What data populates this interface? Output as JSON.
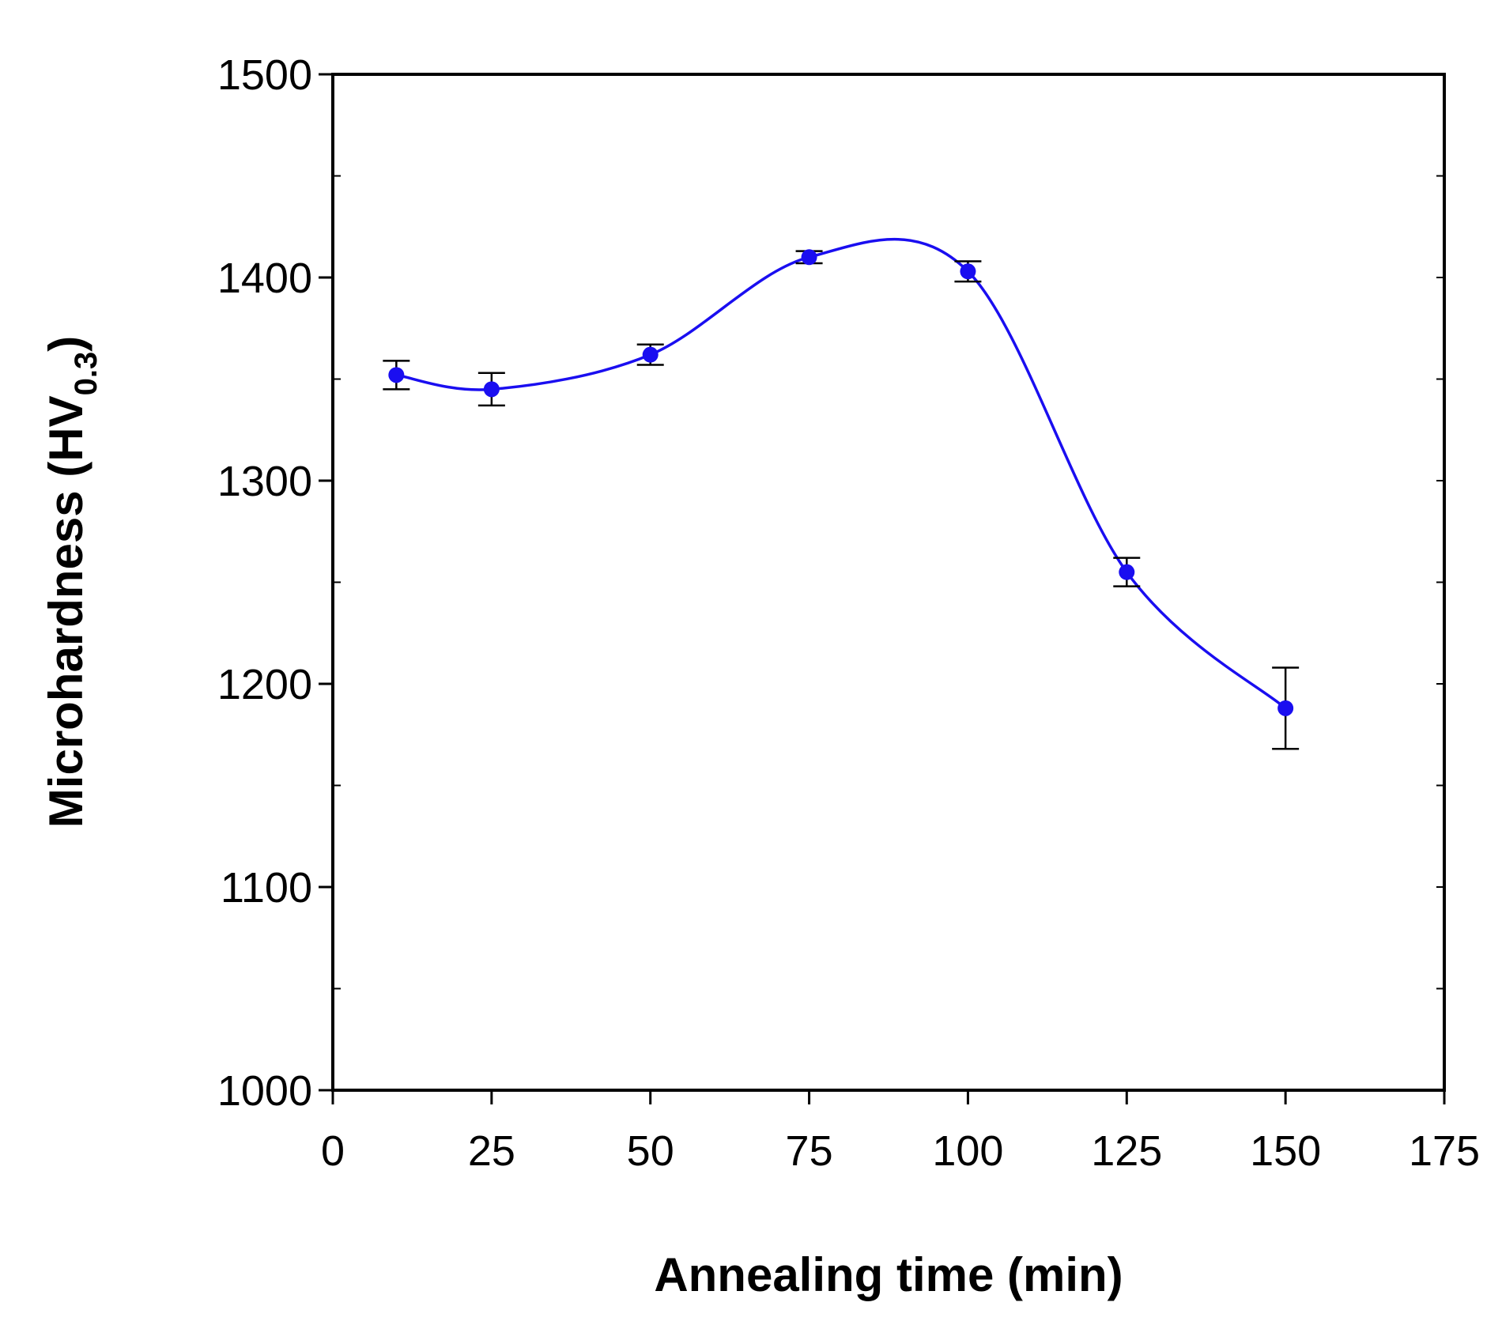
{
  "chart_data": {
    "type": "line",
    "title": "",
    "xlabel": "Annealing time (min)",
    "ylabel": {
      "main": "Microhardness (HV",
      "subscript": "0.3",
      "suffix": ")"
    },
    "xlim": [
      0,
      175
    ],
    "ylim": [
      1000,
      1500
    ],
    "xticks": [
      "0",
      "25",
      "50",
      "75",
      "100",
      "125",
      "150",
      "175"
    ],
    "xtick_values": [
      0,
      25,
      50,
      75,
      100,
      125,
      150,
      175
    ],
    "yticks": [
      "1000",
      "1100",
      "1200",
      "1300",
      "1400",
      "1500"
    ],
    "ytick_values": [
      1000,
      1100,
      1200,
      1300,
      1400,
      1500
    ],
    "grid": false,
    "series": [
      {
        "name": "Microhardness",
        "color": "#1a0ef0",
        "smooth": true,
        "points": [
          {
            "x": 10,
            "y": 1352,
            "err": 7
          },
          {
            "x": 25,
            "y": 1345,
            "err": 8
          },
          {
            "x": 50,
            "y": 1362,
            "err": 5
          },
          {
            "x": 75,
            "y": 1410,
            "err": 3
          },
          {
            "x": 100,
            "y": 1403,
            "err": 5
          },
          {
            "x": 125,
            "y": 1255,
            "err": 7
          },
          {
            "x": 150,
            "y": 1188,
            "err": 20
          }
        ]
      }
    ]
  }
}
